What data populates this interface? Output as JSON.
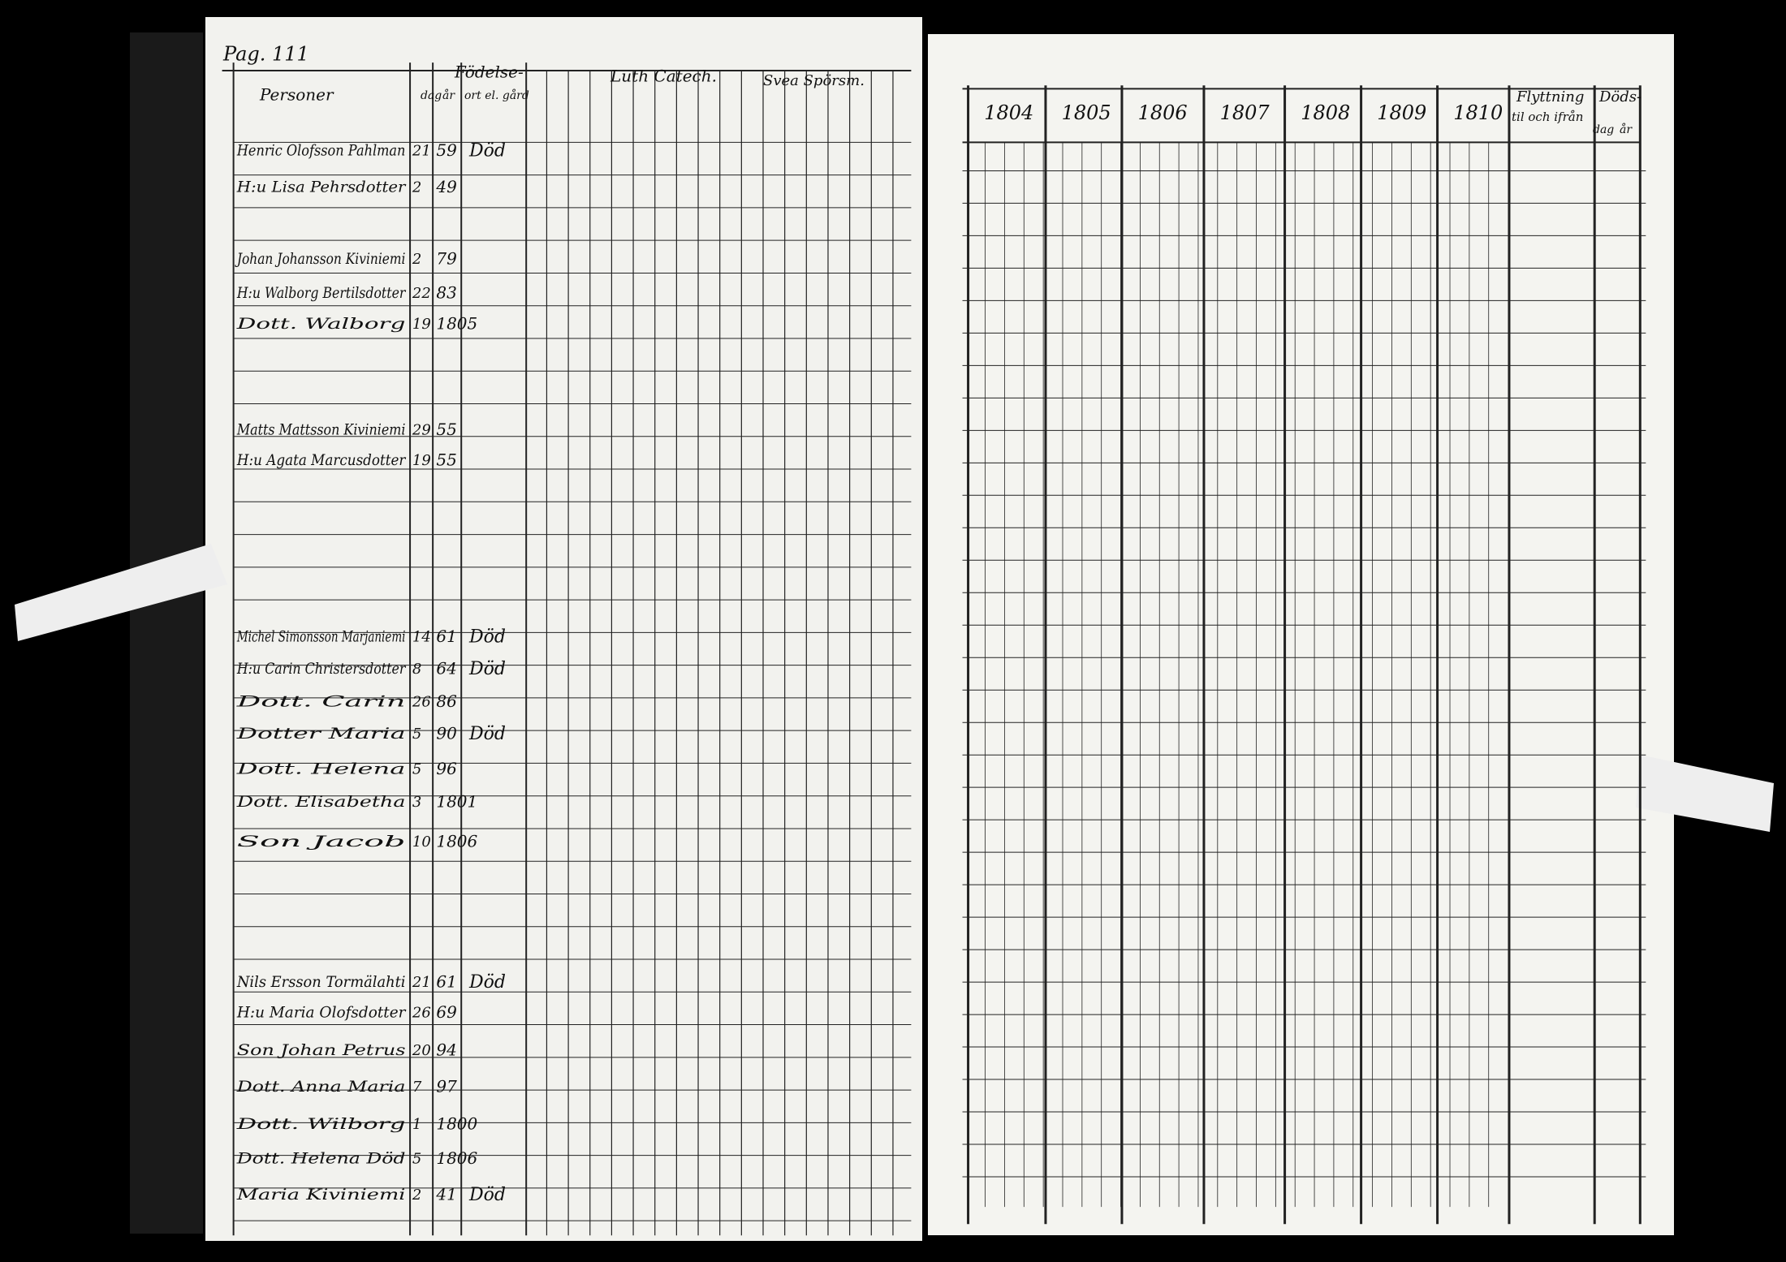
{
  "header": {
    "page_label": "Pag. 111"
  },
  "left_page": {
    "headers": {
      "persons": "Personer",
      "birth": "Födelse-",
      "day": "dag",
      "year": "år",
      "place": "ort el. gård",
      "luth": "Luth Catech.",
      "svea": "Svea Spörsm."
    },
    "rows": [
      {
        "name": "Henric Olofsson Pahlman",
        "day": "21",
        "year": "59",
        "note": "Död"
      },
      {
        "name": "H:u Lisa Pehrsdotter",
        "day": "2",
        "year": "49"
      },
      {
        "name": "Johan Johansson Kiviniemi",
        "day": "2",
        "year": "79"
      },
      {
        "name": "H:u Walborg Bertilsdotter",
        "day": "22",
        "year": "83"
      },
      {
        "name": "Dott. Walborg",
        "day": "19",
        "year": "1805"
      },
      {
        "name": "Matts Mattsson Kiviniemi",
        "day": "29",
        "year": "55"
      },
      {
        "name": "H:u Agata Marcusdotter",
        "day": "19",
        "year": "55"
      },
      {
        "name": "Michel Simonsson Marjaniemi",
        "day": "14",
        "year": "61",
        "note": "Död"
      },
      {
        "name": "H:u Carin Christersdotter",
        "day": "8",
        "year": "64",
        "note": "Död"
      },
      {
        "name": "Dott. Carin",
        "day": "26",
        "year": "86"
      },
      {
        "name": "Dotter Maria",
        "day": "5",
        "year": "90",
        "note": "Död"
      },
      {
        "name": "Dott. Helena",
        "day": "5",
        "year": "96"
      },
      {
        "name": "Dott. Elisabetha",
        "day": "3",
        "year": "1801"
      },
      {
        "name": "Son Jacob",
        "day": "10",
        "year": "1806"
      },
      {
        "name": "Nils Ersson Tormälahti",
        "day": "21",
        "year": "61",
        "note": "Död"
      },
      {
        "name": "H:u Maria Olofsdotter",
        "day": "26",
        "year": "69"
      },
      {
        "name": "Son Johan Petrus",
        "day": "20",
        "year": "94"
      },
      {
        "name": "Dott. Anna Maria",
        "day": "7",
        "year": "97"
      },
      {
        "name": "Dott. Wilborg",
        "day": "1",
        "year": "1800"
      },
      {
        "name": "Dott. Helena Död",
        "day": "5",
        "year": "1806"
      },
      {
        "name": "Maria Kiviniemi",
        "day": "2",
        "year": "41",
        "note": "Död"
      }
    ]
  },
  "right_page": {
    "years": [
      "1804",
      "1805",
      "1806",
      "1807",
      "1808",
      "1809",
      "1810"
    ],
    "moving": "Flyttning",
    "moving_sub": "til och ifrån",
    "death": "Döds-",
    "death_day": "dag",
    "death_year": "år"
  }
}
